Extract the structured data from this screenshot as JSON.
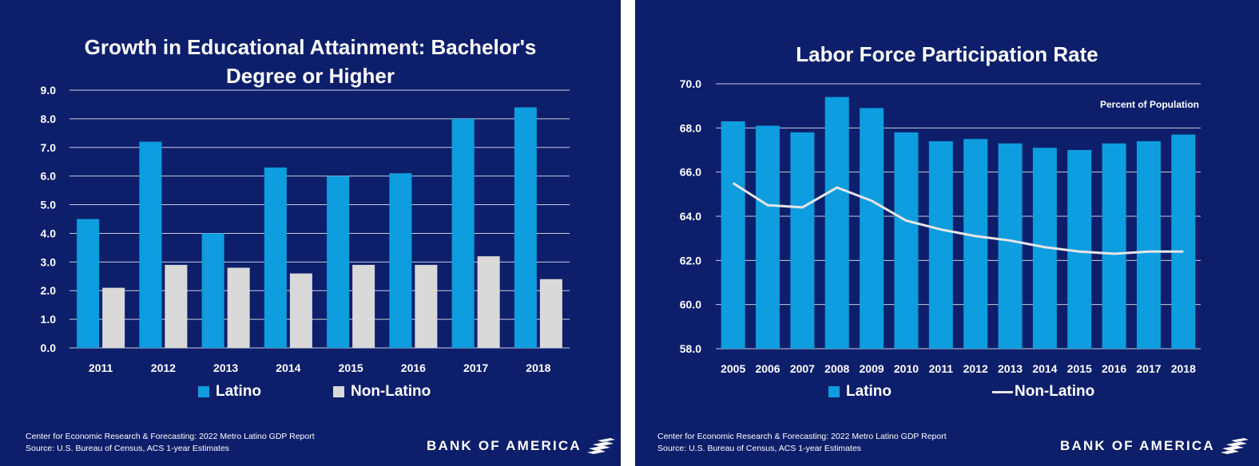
{
  "left_chart": {
    "title_line1": "Growth in Educational Attainment: Bachelor's",
    "title_line2": "Degree or Higher",
    "legend": {
      "latino": "Latino",
      "non_latino": "Non-Latino"
    },
    "source_line1": "Center for Economic Research & Forecasting: 2022 Metro Latino GDP Report",
    "source_line2": "Source: U.S. Bureau of Census, ACS 1-year Estimates",
    "brand": "BANK OF AMERICA"
  },
  "right_chart": {
    "title": "Labor Force Participation Rate",
    "annotation": "Percent of Population",
    "legend": {
      "latino": "Latino",
      "non_latino": "Non-Latino"
    },
    "source_line1": "Center for Economic Research & Forecasting: 2022 Metro Latino GDP Report",
    "source_line2": "Source: U.S. Bureau of Census, ACS 1-year Estimates",
    "brand": "BANK OF AMERICA"
  },
  "colors": {
    "background": "#0d1f6b",
    "latino": "#0e9ddf",
    "non_latino": "#d9d9d9",
    "gridline": "#c8cce0",
    "text": "#ffffff"
  },
  "chart_data": [
    {
      "type": "bar",
      "title": "Growth in Educational Attainment: Bachelor's Degree or Higher",
      "categories": [
        "2011",
        "2012",
        "2013",
        "2014",
        "2015",
        "2016",
        "2017",
        "2018"
      ],
      "series": [
        {
          "name": "Latino",
          "values": [
            4.5,
            7.2,
            4.0,
            6.3,
            6.0,
            6.1,
            8.0,
            8.4
          ]
        },
        {
          "name": "Non-Latino",
          "values": [
            2.1,
            2.9,
            2.8,
            2.6,
            2.9,
            2.9,
            3.2,
            2.4
          ]
        }
      ],
      "yticks": [
        "0.0",
        "1.0",
        "2.0",
        "3.0",
        "4.0",
        "5.0",
        "6.0",
        "7.0",
        "8.0",
        "9.0"
      ],
      "ylim": [
        0,
        9
      ],
      "xlabel": "",
      "ylabel": "",
      "grid": true,
      "legend_position": "bottom"
    },
    {
      "type": "bar",
      "title": "Labor Force Participation Rate",
      "categories": [
        "2005",
        "2006",
        "2007",
        "2008",
        "2009",
        "2010",
        "2011",
        "2012",
        "2013",
        "2014",
        "2015",
        "2016",
        "2017",
        "2018"
      ],
      "series": [
        {
          "name": "Latino",
          "kind": "bar",
          "values": [
            68.3,
            68.1,
            67.8,
            69.4,
            68.9,
            67.8,
            67.4,
            67.5,
            67.3,
            67.1,
            67.0,
            67.3,
            67.4,
            67.7
          ]
        },
        {
          "name": "Non-Latino",
          "kind": "line",
          "values": [
            65.5,
            64.5,
            64.4,
            65.3,
            64.7,
            63.8,
            63.4,
            63.1,
            62.9,
            62.6,
            62.4,
            62.3,
            62.4,
            62.4
          ]
        }
      ],
      "yticks": [
        "58.0",
        "60.0",
        "62.0",
        "64.0",
        "66.0",
        "68.0",
        "70.0"
      ],
      "ylim": [
        58,
        70
      ],
      "xlabel": "",
      "ylabel": "Percent of Population",
      "grid": true,
      "legend_position": "bottom"
    }
  ]
}
